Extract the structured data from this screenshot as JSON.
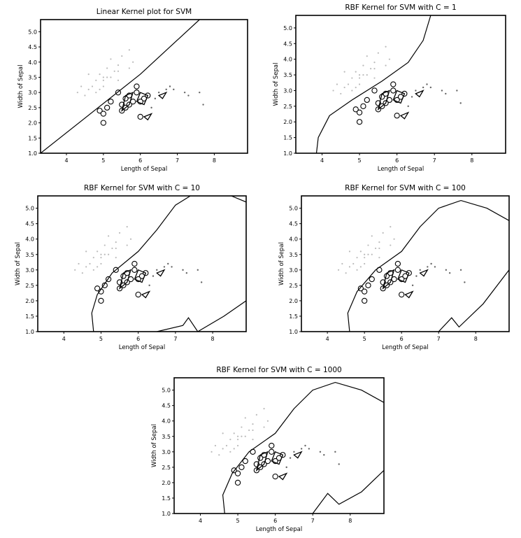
{
  "chart_data": [
    {
      "type": "scatter",
      "title": "Linear Kernel plot for SVM",
      "xlabel": "Length of Sepal",
      "ylabel": "Width of Sepal",
      "xlim": [
        3.3,
        8.9
      ],
      "ylim": [
        1.0,
        5.4
      ],
      "xticks": [
        "4",
        "5",
        "6",
        "7",
        "8"
      ],
      "yticks": [
        "1.0",
        "1.5",
        "2.0",
        "2.5",
        "3.0",
        "3.5",
        "4.0",
        "4.5",
        "5.0"
      ],
      "boundary": [
        [
          3.3,
          1.0
        ],
        [
          6.0,
          3.6
        ],
        [
          7.6,
          5.4
        ]
      ]
    },
    {
      "type": "scatter",
      "title": "RBF Kernel for SVM with C = 1",
      "xlabel": "Length of Sepal",
      "ylabel": "Width of Sepal",
      "xlim": [
        3.3,
        8.9
      ],
      "ylim": [
        1.0,
        5.4
      ],
      "xticks": [
        "4",
        "5",
        "6",
        "7",
        "8"
      ],
      "yticks": [
        "1.0",
        "1.5",
        "2.0",
        "2.5",
        "3.0",
        "3.5",
        "4.0",
        "4.5",
        "5.0"
      ],
      "boundary": [
        [
          3.85,
          1.0
        ],
        [
          3.9,
          1.5
        ],
        [
          4.2,
          2.2
        ],
        [
          4.8,
          2.7
        ],
        [
          5.6,
          3.3
        ],
        [
          6.3,
          3.9
        ],
        [
          6.7,
          4.6
        ],
        [
          6.9,
          5.4
        ]
      ]
    },
    {
      "type": "scatter",
      "title": "RBF Kernel for SVM with C = 10",
      "xlabel": "Length of Sepal",
      "ylabel": "Width of Sepal",
      "xlim": [
        3.3,
        8.9
      ],
      "ylim": [
        1.0,
        5.4
      ],
      "xticks": [
        "4",
        "5",
        "6",
        "7",
        "8"
      ],
      "yticks": [
        "1.0",
        "1.5",
        "2.0",
        "2.5",
        "3.0",
        "3.5",
        "4.0",
        "4.5",
        "5.0"
      ],
      "boundary": [
        [
          4.8,
          1.0
        ],
        [
          4.75,
          1.6
        ],
        [
          4.9,
          2.2
        ],
        [
          5.3,
          2.9
        ],
        [
          6.0,
          3.6
        ],
        [
          6.5,
          4.3
        ],
        [
          7.0,
          5.1
        ],
        [
          7.4,
          5.4
        ],
        [
          8.5,
          5.4
        ],
        [
          8.9,
          5.2
        ]
      ],
      "boundary2": [
        [
          6.5,
          1.0
        ],
        [
          7.2,
          1.2
        ],
        [
          7.35,
          1.45
        ],
        [
          7.6,
          1.0
        ],
        [
          8.3,
          1.5
        ],
        [
          8.9,
          2.0
        ]
      ]
    },
    {
      "type": "scatter",
      "title": "RBF Kernel for SVM with C = 100",
      "xlabel": "Length of Sepal",
      "ylabel": "Width of Sepal",
      "xlim": [
        3.3,
        8.9
      ],
      "ylim": [
        1.0,
        5.4
      ],
      "xticks": [
        "4",
        "5",
        "6",
        "7",
        "8"
      ],
      "yticks": [
        "1.0",
        "1.5",
        "2.0",
        "2.5",
        "3.0",
        "3.5",
        "4.0",
        "4.5",
        "5.0"
      ],
      "boundary": [
        [
          4.6,
          1.0
        ],
        [
          4.55,
          1.6
        ],
        [
          4.8,
          2.3
        ],
        [
          5.3,
          3.0
        ],
        [
          6.0,
          3.6
        ],
        [
          6.5,
          4.4
        ],
        [
          7.0,
          5.0
        ],
        [
          7.6,
          5.25
        ],
        [
          8.3,
          5.0
        ],
        [
          8.9,
          4.6
        ]
      ],
      "boundary2": [
        [
          7.0,
          1.0
        ],
        [
          7.35,
          1.45
        ],
        [
          7.55,
          1.15
        ],
        [
          8.2,
          1.9
        ],
        [
          8.9,
          3.0
        ]
      ]
    },
    {
      "type": "scatter",
      "title": "RBF Kernel for SVM with C = 1000",
      "xlabel": "Length of Sepal",
      "ylabel": "Width of Sepal",
      "xlim": [
        3.3,
        8.9
      ],
      "ylim": [
        1.0,
        5.4
      ],
      "xticks": [
        "4",
        "5",
        "6",
        "7",
        "8"
      ],
      "yticks": [
        "1.0",
        "1.5",
        "2.0",
        "2.5",
        "3.0",
        "3.5",
        "4.0",
        "4.5",
        "5.0"
      ],
      "boundary": [
        [
          4.65,
          1.0
        ],
        [
          4.6,
          1.6
        ],
        [
          4.85,
          2.3
        ],
        [
          5.3,
          3.0
        ],
        [
          6.0,
          3.6
        ],
        [
          6.5,
          4.4
        ],
        [
          7.0,
          5.0
        ],
        [
          7.6,
          5.25
        ],
        [
          8.3,
          5.0
        ],
        [
          8.9,
          4.6
        ]
      ],
      "boundary2": [
        [
          7.0,
          1.0
        ],
        [
          7.4,
          1.65
        ],
        [
          7.7,
          1.3
        ],
        [
          8.3,
          1.7
        ],
        [
          8.9,
          2.4
        ]
      ]
    }
  ],
  "points": {
    "setosa": [
      [
        4.3,
        3.0
      ],
      [
        4.4,
        3.2
      ],
      [
        4.6,
        3.6
      ],
      [
        4.7,
        3.2
      ],
      [
        4.8,
        3.4
      ],
      [
        4.9,
        3.6
      ],
      [
        5.0,
        3.5
      ],
      [
        5.0,
        3.4
      ],
      [
        5.1,
        3.8
      ],
      [
        5.1,
        3.5
      ],
      [
        5.2,
        4.1
      ],
      [
        5.3,
        3.7
      ],
      [
        5.4,
        3.9
      ],
      [
        5.4,
        3.4
      ],
      [
        5.5,
        4.2
      ],
      [
        5.7,
        4.4
      ],
      [
        5.7,
        3.8
      ],
      [
        5.8,
        4.0
      ],
      [
        4.5,
        2.9
      ],
      [
        4.6,
        3.1
      ],
      [
        5.0,
        3.2
      ],
      [
        4.9,
        3.1
      ],
      [
        5.2,
        3.5
      ],
      [
        5.4,
        3.7
      ],
      [
        4.8,
        3.0
      ]
    ],
    "versicolor": [
      [
        4.9,
        2.4
      ],
      [
        5.0,
        2.3
      ],
      [
        5.0,
        2.0
      ],
      [
        5.1,
        2.5
      ],
      [
        5.2,
        2.7
      ],
      [
        5.4,
        3.0
      ],
      [
        5.5,
        2.4
      ],
      [
        5.6,
        2.8
      ],
      [
        5.7,
        2.6
      ],
      [
        5.8,
        2.7
      ],
      [
        5.9,
        3.2
      ],
      [
        6.0,
        2.2
      ],
      [
        6.1,
        2.8
      ],
      [
        6.2,
        2.9
      ],
      [
        5.6,
        2.5
      ],
      [
        5.5,
        2.6
      ],
      [
        5.7,
        2.9
      ],
      [
        6.0,
        2.7
      ],
      [
        5.9,
        3.0
      ]
    ],
    "virginica": [
      [
        6.3,
        2.5
      ],
      [
        6.4,
        2.8
      ],
      [
        6.5,
        3.0
      ],
      [
        6.7,
        3.1
      ],
      [
        6.9,
        3.1
      ],
      [
        7.2,
        3.0
      ],
      [
        7.7,
        2.6
      ],
      [
        7.3,
        2.9
      ],
      [
        6.8,
        3.2
      ],
      [
        7.6,
        3.0
      ]
    ]
  }
}
